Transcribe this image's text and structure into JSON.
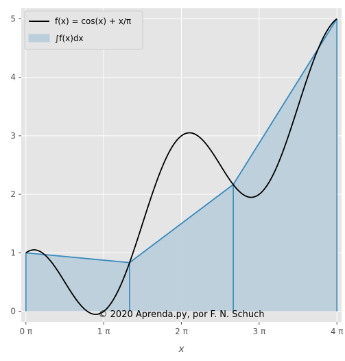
{
  "chart_data": {
    "type": "line",
    "xlabel": "x",
    "ylabel": "",
    "xlim": [
      -0.06,
      4.06
    ],
    "ylim": [
      -0.18,
      5.18
    ],
    "x_unit": "π",
    "x_ticks": [
      0,
      1,
      2,
      3,
      4
    ],
    "x_tick_labels": [
      "0 π",
      "1 π",
      "2 π",
      "3 π",
      "4 π"
    ],
    "y_ticks": [
      0,
      1,
      2,
      3,
      4,
      5
    ],
    "y_tick_labels": [
      "0",
      "1",
      "2",
      "3",
      "4",
      "5"
    ],
    "grid": true,
    "legend_position": "top-left",
    "series": [
      {
        "name": "f(x) = cos(x) + x/π",
        "kind": "line",
        "color": "#000000",
        "function": "cos(x) + x/π",
        "x_domain_pi": [
          0,
          4
        ]
      },
      {
        "name": "∫f(x)dx",
        "kind": "trapezoid-area",
        "color": "#348ABD",
        "fill": "#BACFDB",
        "nodes": [
          {
            "x": 0,
            "y": 1.0
          },
          {
            "x": 1.333,
            "y": 0.833
          },
          {
            "x": 2.667,
            "y": 2.167
          },
          {
            "x": 4,
            "y": 5.0
          }
        ]
      }
    ],
    "annotation": "© 2020 Aprenda.py, por F. N. Schuch"
  },
  "colors": {
    "plot_background": "#E5E5E5",
    "grid": "#FFFFFF",
    "curve": "#000000",
    "trapezoid_line": "#348ABD",
    "trapezoid_fill": "#BACFDB"
  }
}
